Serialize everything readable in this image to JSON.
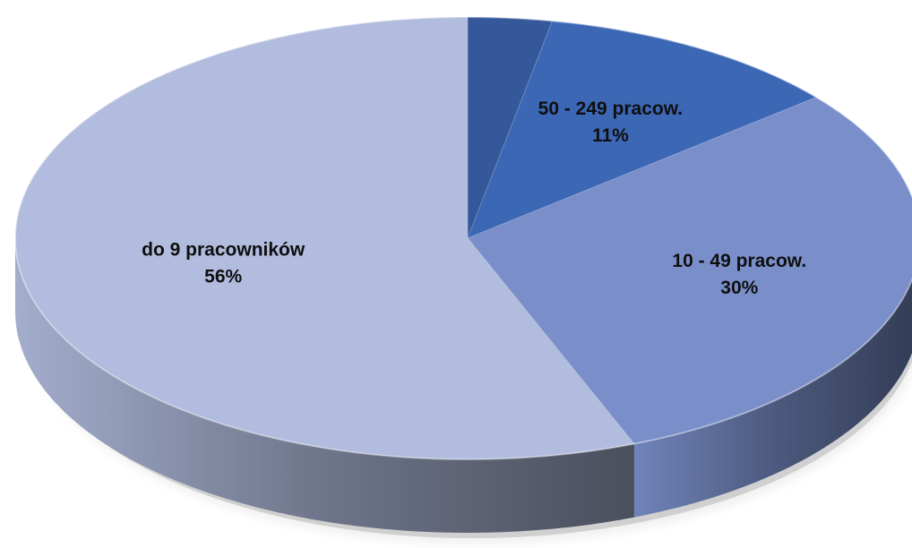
{
  "chart_data": {
    "type": "pie",
    "style": "3d",
    "title": "",
    "slices": [
      {
        "label": "",
        "value": 3,
        "value_label": "",
        "color": "#34589a"
      },
      {
        "label": "50  -  249 pracow.",
        "value": 11,
        "value_label": "11%",
        "color": "#3c67b5"
      },
      {
        "label": "10 - 49 pracow.",
        "value": 30,
        "value_label": "30%",
        "color": "#7a8fca"
      },
      {
        "label": "do 9 pracowników",
        "value": 56,
        "value_label": "56%",
        "color": "#b1bcde"
      }
    ],
    "legend": "none"
  }
}
